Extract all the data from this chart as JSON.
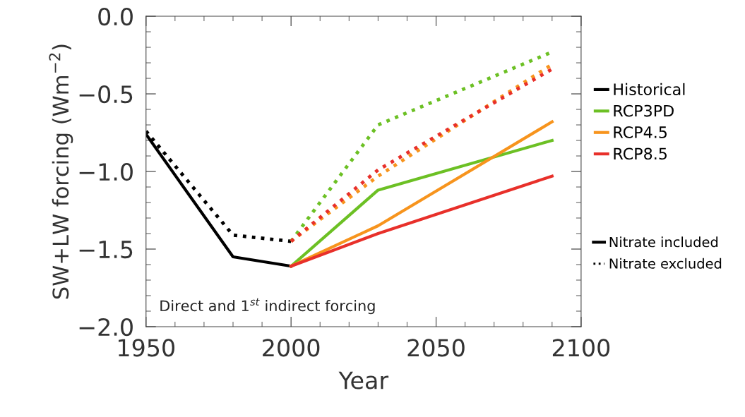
{
  "chart_data": {
    "type": "line",
    "xlabel": "Year",
    "ylabel": "SW+LW forcing (Wm$^{−2}$)",
    "xlim": [
      1950,
      2100
    ],
    "xticks": [
      1950,
      2000,
      2050,
      2100
    ],
    "ylim": [
      -2.0,
      0.0
    ],
    "yticks": [
      {
        "value": -2.0,
        "label": "−2.0"
      },
      {
        "value": -1.5,
        "label": "−1.5"
      },
      {
        "value": -1.0,
        "label": "−1.0"
      },
      {
        "value": -0.5,
        "label": "−0.5"
      },
      {
        "value": 0.0,
        "label": "0.0"
      }
    ],
    "grid": false,
    "legend": "right",
    "marker": "none",
    "annotations": [
      "Direct and 1$^{st}$ indirect forcing",
      "Nitrate included",
      "Nitrate excluded"
    ],
    "series": [
      {
        "name": "Historical",
        "color": "#000000",
        "line_style": "solid",
        "x": [
          1950,
          1980,
          2000
        ],
        "values": [
          -0.76,
          -1.55,
          -1.61
        ]
      },
      {
        "name": "RCP3PD",
        "color": "#6cc024",
        "line_style": "solid",
        "x": [
          2000,
          2030,
          2090
        ],
        "values": [
          -1.61,
          -1.12,
          -0.8
        ]
      },
      {
        "name": "RCP4.5",
        "color": "#f7941d",
        "line_style": "solid",
        "x": [
          2000,
          2030,
          2090
        ],
        "values": [
          -1.61,
          -1.35,
          -0.68
        ]
      },
      {
        "name": "RCP8.5",
        "color": "#e8302a",
        "line_style": "solid",
        "x": [
          2000,
          2030,
          2090
        ],
        "values": [
          -1.61,
          -1.4,
          -1.03
        ]
      },
      {
        "color": "#000000",
        "line_style": "dotted",
        "x": [
          1950,
          1980,
          2000
        ],
        "values": [
          -0.74,
          -1.41,
          -1.45
        ]
      },
      {
        "color": "#6cc024",
        "line_style": "dotted",
        "x": [
          2000,
          2030,
          2090
        ],
        "values": [
          -1.45,
          -0.7,
          -0.23
        ]
      },
      {
        "color": "#f7941d",
        "line_style": "dotted",
        "x": [
          2000,
          2030,
          2090
        ],
        "values": [
          -1.45,
          -1.03,
          -0.31
        ]
      },
      {
        "color": "#e8302a",
        "line_style": "dotted",
        "x": [
          2000,
          2030,
          2090
        ],
        "values": [
          -1.45,
          -0.99,
          -0.34
        ]
      }
    ]
  }
}
